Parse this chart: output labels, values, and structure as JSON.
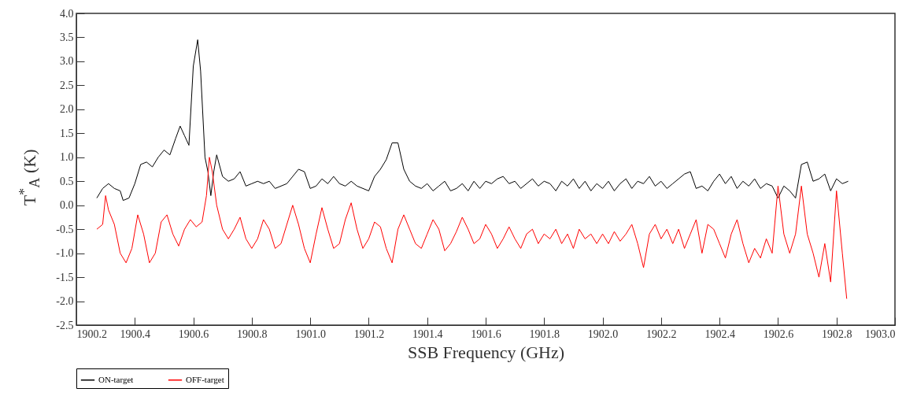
{
  "chart_data": {
    "type": "line",
    "xlabel": "SSB Frequency (GHz)",
    "ylabel": "T$^{*}$$_{A}$ (K)",
    "xlim": [
      1900.2,
      1903.0
    ],
    "xticks": [
      1900.2,
      1900.4,
      1900.6,
      1900.8,
      {
        "value": 1901.0,
        "label": "1901.0"
      },
      1901.2,
      1901.4,
      1901.6,
      1901.8,
      {
        "value": 1902.0,
        "label": "1902.0"
      },
      1902.2,
      1902.4,
      1902.6,
      1902.8,
      {
        "value": 1903.0,
        "label": "1903.0"
      }
    ],
    "ylim": [
      -2.5,
      4.0
    ],
    "yticks": [
      -2.5,
      {
        "value": -2,
        "label": "-2.0"
      },
      -1.5,
      {
        "value": -1,
        "label": "-1.0"
      },
      -0.5,
      {
        "value": 0,
        "label": "0.0"
      },
      0.5,
      {
        "value": 1,
        "label": "1.0"
      },
      1.5,
      {
        "value": 2,
        "label": "2.0"
      },
      2.5,
      {
        "value": 3,
        "label": "3.0"
      },
      3.5,
      {
        "value": 4,
        "label": "4.0"
      }
    ],
    "grid": false,
    "legend": "bottom",
    "marker": "none",
    "line_style": "solid",
    "series": [
      {
        "name": "ON-target",
        "color": "#000000",
        "x": [
          1900.27,
          1900.29,
          1900.31,
          1900.33,
          1900.35,
          1900.36,
          1900.38,
          1900.4,
          1900.42,
          1900.44,
          1900.46,
          1900.48,
          1900.5,
          1900.52,
          1900.54,
          1900.555,
          1900.57,
          1900.585,
          1900.6,
          1900.615,
          1900.625,
          1900.64,
          1900.65,
          1900.66,
          1900.67,
          1900.68,
          1900.7,
          1900.72,
          1900.74,
          1900.76,
          1900.78,
          1900.8,
          1900.82,
          1900.84,
          1900.86,
          1900.88,
          1900.9,
          1900.92,
          1900.94,
          1900.96,
          1900.98,
          1901.0,
          1901.02,
          1901.04,
          1901.06,
          1901.08,
          1901.1,
          1901.12,
          1901.14,
          1901.16,
          1901.18,
          1901.2,
          1901.22,
          1901.24,
          1901.26,
          1901.28,
          1901.3,
          1901.32,
          1901.34,
          1901.36,
          1901.38,
          1901.4,
          1901.42,
          1901.44,
          1901.46,
          1901.48,
          1901.5,
          1901.52,
          1901.54,
          1901.56,
          1901.58,
          1901.6,
          1901.62,
          1901.64,
          1901.66,
          1901.68,
          1901.7,
          1901.72,
          1901.74,
          1901.76,
          1901.78,
          1901.8,
          1901.82,
          1901.84,
          1901.86,
          1901.88,
          1901.9,
          1901.92,
          1901.94,
          1901.96,
          1901.98,
          1902.0,
          1902.02,
          1902.04,
          1902.06,
          1902.08,
          1902.1,
          1902.12,
          1902.14,
          1902.16,
          1902.18,
          1902.2,
          1902.22,
          1902.24,
          1902.26,
          1902.28,
          1902.3,
          1902.32,
          1902.34,
          1902.36,
          1902.38,
          1902.4,
          1902.42,
          1902.44,
          1902.46,
          1902.48,
          1902.5,
          1902.52,
          1902.54,
          1902.56,
          1902.58,
          1902.6,
          1902.62,
          1902.64,
          1902.66,
          1902.68,
          1902.7,
          1902.72,
          1902.74,
          1902.76,
          1902.78,
          1902.8,
          1902.82,
          1902.84
        ],
        "values": [
          0.15,
          0.35,
          0.45,
          0.35,
          0.3,
          0.1,
          0.15,
          0.45,
          0.85,
          0.9,
          0.8,
          1.0,
          1.15,
          1.05,
          1.4,
          1.65,
          1.45,
          1.25,
          2.9,
          3.45,
          2.8,
          1.0,
          0.7,
          0.2,
          0.7,
          1.05,
          0.6,
          0.5,
          0.55,
          0.7,
          0.4,
          0.45,
          0.5,
          0.45,
          0.5,
          0.35,
          0.4,
          0.45,
          0.6,
          0.75,
          0.7,
          0.35,
          0.4,
          0.55,
          0.45,
          0.6,
          0.45,
          0.4,
          0.5,
          0.4,
          0.35,
          0.3,
          0.6,
          0.75,
          0.95,
          1.3,
          1.3,
          0.75,
          0.5,
          0.4,
          0.35,
          0.45,
          0.3,
          0.4,
          0.5,
          0.3,
          0.35,
          0.45,
          0.3,
          0.5,
          0.35,
          0.5,
          0.45,
          0.55,
          0.6,
          0.45,
          0.5,
          0.35,
          0.45,
          0.55,
          0.4,
          0.5,
          0.45,
          0.3,
          0.5,
          0.4,
          0.55,
          0.35,
          0.5,
          0.3,
          0.45,
          0.35,
          0.5,
          0.3,
          0.45,
          0.55,
          0.35,
          0.5,
          0.45,
          0.6,
          0.4,
          0.5,
          0.35,
          0.45,
          0.55,
          0.65,
          0.7,
          0.35,
          0.4,
          0.3,
          0.5,
          0.65,
          0.45,
          0.6,
          0.35,
          0.5,
          0.4,
          0.55,
          0.35,
          0.45,
          0.4,
          0.15,
          0.4,
          0.3,
          0.15,
          0.85,
          0.9,
          0.5,
          0.55,
          0.65,
          0.3,
          0.55,
          0.45,
          0.5
        ]
      },
      {
        "name": "OFF-target",
        "color": "#ff0000",
        "x": [
          1900.27,
          1900.29,
          1900.3,
          1900.31,
          1900.33,
          1900.35,
          1900.37,
          1900.39,
          1900.41,
          1900.43,
          1900.45,
          1900.47,
          1900.49,
          1900.51,
          1900.53,
          1900.55,
          1900.57,
          1900.59,
          1900.61,
          1900.63,
          1900.645,
          1900.655,
          1900.665,
          1900.68,
          1900.7,
          1900.72,
          1900.74,
          1900.76,
          1900.78,
          1900.8,
          1900.82,
          1900.84,
          1900.86,
          1900.88,
          1900.9,
          1900.92,
          1900.94,
          1900.96,
          1900.98,
          1901.0,
          1901.02,
          1901.04,
          1901.06,
          1901.08,
          1901.1,
          1901.12,
          1901.14,
          1901.16,
          1901.18,
          1901.2,
          1901.22,
          1901.24,
          1901.26,
          1901.28,
          1901.3,
          1901.32,
          1901.34,
          1901.36,
          1901.38,
          1901.4,
          1901.42,
          1901.44,
          1901.46,
          1901.48,
          1901.5,
          1901.52,
          1901.54,
          1901.56,
          1901.58,
          1901.6,
          1901.62,
          1901.64,
          1901.66,
          1901.68,
          1901.7,
          1901.72,
          1901.74,
          1901.76,
          1901.78,
          1901.8,
          1901.82,
          1901.84,
          1901.86,
          1901.88,
          1901.9,
          1901.92,
          1901.94,
          1901.96,
          1901.98,
          1902.0,
          1902.02,
          1902.04,
          1902.06,
          1902.08,
          1902.1,
          1902.12,
          1902.14,
          1902.16,
          1902.18,
          1902.2,
          1902.22,
          1902.24,
          1902.26,
          1902.28,
          1902.3,
          1902.32,
          1902.34,
          1902.36,
          1902.38,
          1902.4,
          1902.42,
          1902.44,
          1902.46,
          1902.48,
          1902.5,
          1902.52,
          1902.54,
          1902.56,
          1902.58,
          1902.6,
          1902.62,
          1902.64,
          1902.66,
          1902.68,
          1902.7,
          1902.72,
          1902.74,
          1902.76,
          1902.78,
          1902.8,
          1902.82,
          1902.835
        ],
        "values": [
          -0.5,
          -0.4,
          0.2,
          -0.1,
          -0.4,
          -1.0,
          -1.2,
          -0.9,
          -0.2,
          -0.6,
          -1.2,
          -1.0,
          -0.35,
          -0.2,
          -0.6,
          -0.85,
          -0.5,
          -0.3,
          -0.45,
          -0.35,
          0.2,
          1.0,
          0.7,
          0.0,
          -0.5,
          -0.7,
          -0.5,
          -0.25,
          -0.7,
          -0.9,
          -0.7,
          -0.3,
          -0.5,
          -0.9,
          -0.8,
          -0.4,
          0.0,
          -0.4,
          -0.9,
          -1.2,
          -0.6,
          -0.05,
          -0.5,
          -0.9,
          -0.8,
          -0.3,
          0.05,
          -0.5,
          -0.9,
          -0.7,
          -0.35,
          -0.45,
          -0.9,
          -1.2,
          -0.5,
          -0.2,
          -0.5,
          -0.8,
          -0.9,
          -0.6,
          -0.3,
          -0.5,
          -0.95,
          -0.8,
          -0.55,
          -0.25,
          -0.5,
          -0.8,
          -0.7,
          -0.4,
          -0.6,
          -0.9,
          -0.7,
          -0.45,
          -0.7,
          -0.9,
          -0.6,
          -0.5,
          -0.8,
          -0.6,
          -0.7,
          -0.5,
          -0.8,
          -0.6,
          -0.9,
          -0.5,
          -0.7,
          -0.6,
          -0.8,
          -0.6,
          -0.8,
          -0.55,
          -0.75,
          -0.6,
          -0.4,
          -0.8,
          -1.3,
          -0.6,
          -0.4,
          -0.7,
          -0.5,
          -0.8,
          -0.5,
          -0.9,
          -0.6,
          -0.3,
          -1.0,
          -0.4,
          -0.5,
          -0.8,
          -1.1,
          -0.6,
          -0.3,
          -0.8,
          -1.2,
          -0.9,
          -1.1,
          -0.7,
          -1.0,
          0.4,
          -0.6,
          -1.0,
          -0.6,
          0.4,
          -0.6,
          -1.0,
          -1.5,
          -0.8,
          -1.6,
          0.3,
          -1.0,
          -1.95
        ]
      }
    ]
  }
}
